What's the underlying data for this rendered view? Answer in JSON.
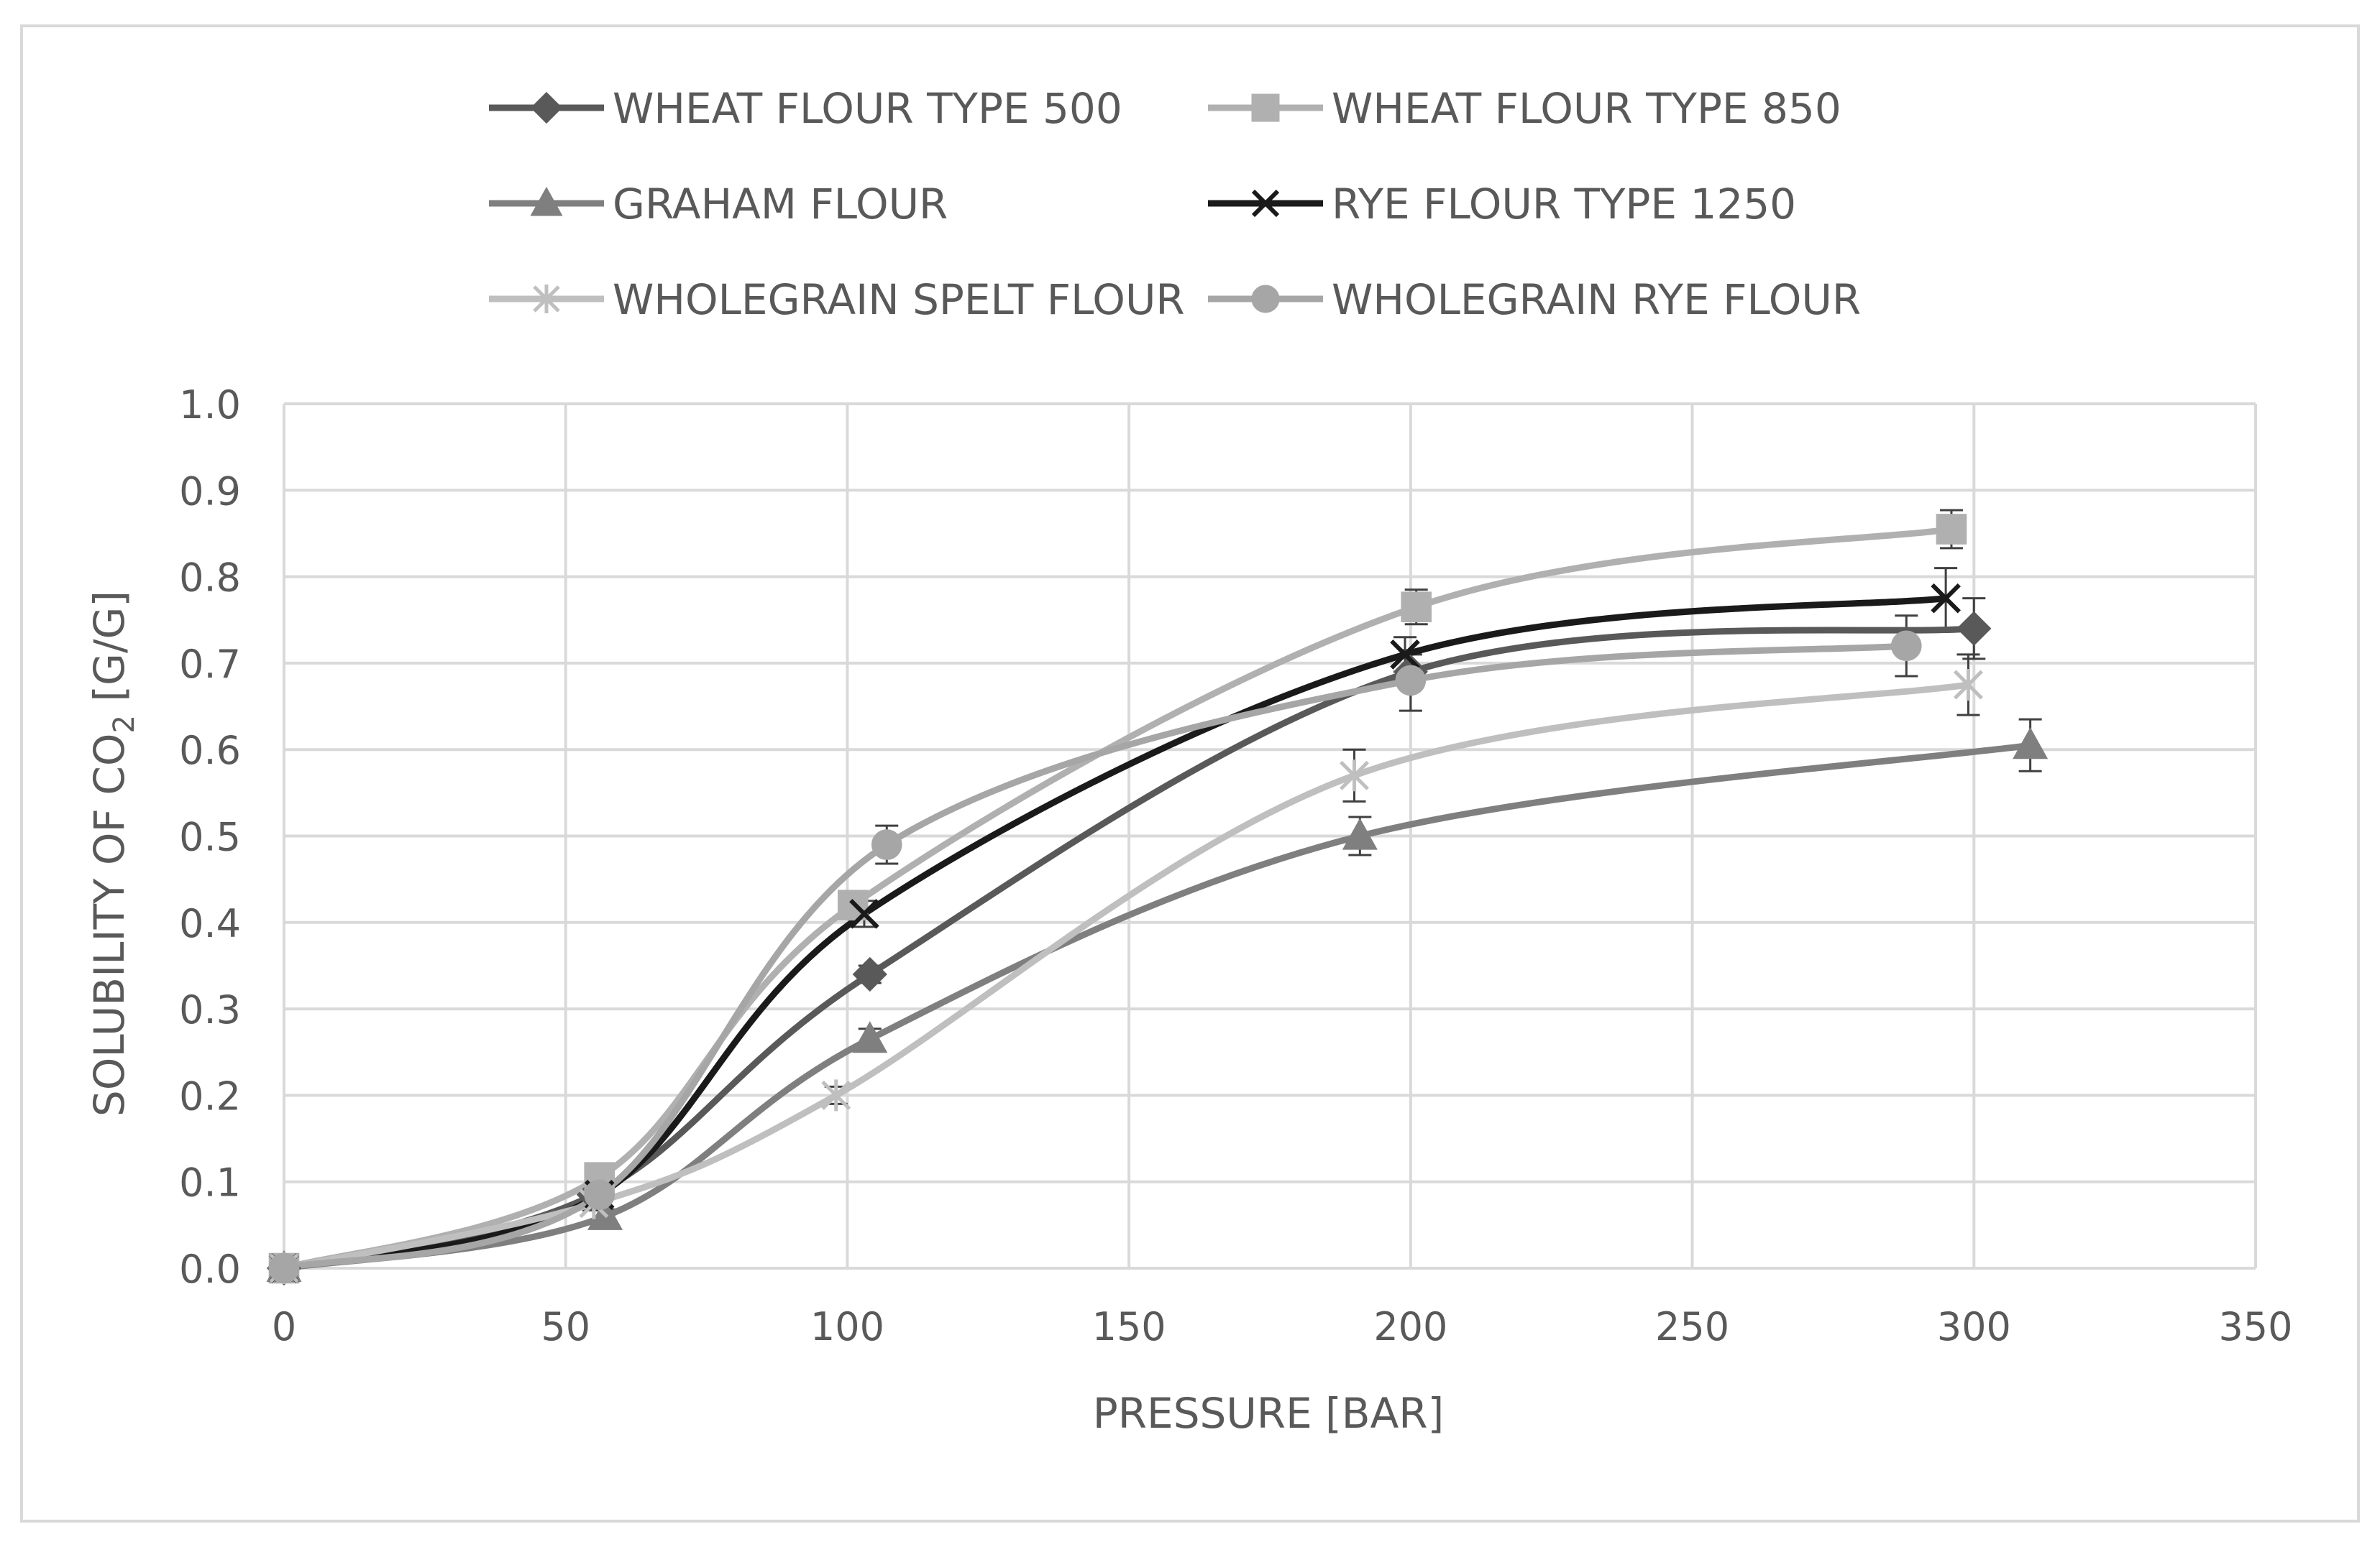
{
  "chart_data": {
    "type": "line",
    "xlabel": "PRESSURE [BAR]",
    "ylabel": {
      "prefix": "SOLUBILITY OF CO",
      "subscript": "2",
      "suffix": " [G/G]"
    },
    "xlim": [
      0,
      350
    ],
    "ylim": [
      0,
      1.0
    ],
    "x_ticks": [
      "0",
      "50",
      "100",
      "150",
      "200",
      "250",
      "300",
      "350"
    ],
    "y_ticks": [
      "0.0",
      "0.1",
      "0.2",
      "0.3",
      "0.4",
      "0.5",
      "0.6",
      "0.7",
      "0.8",
      "0.9",
      "1.0"
    ],
    "grid": true,
    "legend_position": "top",
    "series": [
      {
        "name": "WHEAT FLOUR TYPE 500",
        "marker": "diamond",
        "color": "#595959",
        "x": [
          0,
          55,
          104,
          200,
          300
        ],
        "y": [
          0.0,
          0.085,
          0.34,
          0.69,
          0.74
        ],
        "error": [
          0,
          0.01,
          0.01,
          0.02,
          0.035
        ]
      },
      {
        "name": "WHEAT FLOUR TYPE 850",
        "marker": "square",
        "color": "#b0b0b0",
        "x": [
          0,
          56,
          101,
          201,
          296
        ],
        "y": [
          0.0,
          0.105,
          0.42,
          0.765,
          0.855
        ],
        "error": [
          0,
          0.012,
          0.015,
          0.02,
          0.022
        ]
      },
      {
        "name": "GRAHAM FLOUR",
        "marker": "triangle",
        "color": "#7f7f7f",
        "x": [
          0,
          57,
          104,
          191,
          310
        ],
        "y": [
          0.0,
          0.06,
          0.265,
          0.5,
          0.605
        ],
        "error": [
          0,
          0.008,
          0.012,
          0.022,
          0.03
        ]
      },
      {
        "name": "RYE FLOUR TYPE 1250",
        "marker": "x",
        "color": "#1a1a1a",
        "x": [
          0,
          56,
          103,
          199,
          295
        ],
        "y": [
          0.0,
          0.085,
          0.41,
          0.71,
          0.775
        ],
        "error": [
          0,
          0.01,
          0.015,
          0.02,
          0.035
        ]
      },
      {
        "name": "WHOLEGRAIN SPELT FLOUR",
        "marker": "asterisk",
        "color": "#bfbfbf",
        "x": [
          0,
          55,
          98,
          190,
          299
        ],
        "y": [
          0.0,
          0.075,
          0.2,
          0.57,
          0.675
        ],
        "error": [
          0,
          0.008,
          0.01,
          0.03,
          0.035
        ]
      },
      {
        "name": "WHOLEGRAIN RYE FLOUR",
        "marker": "circle",
        "color": "#a6a6a6",
        "x": [
          0,
          56,
          107,
          200,
          288
        ],
        "y": [
          0.0,
          0.085,
          0.49,
          0.68,
          0.72
        ],
        "error": [
          0,
          0.01,
          0.022,
          0.035,
          0.035
        ]
      }
    ]
  }
}
